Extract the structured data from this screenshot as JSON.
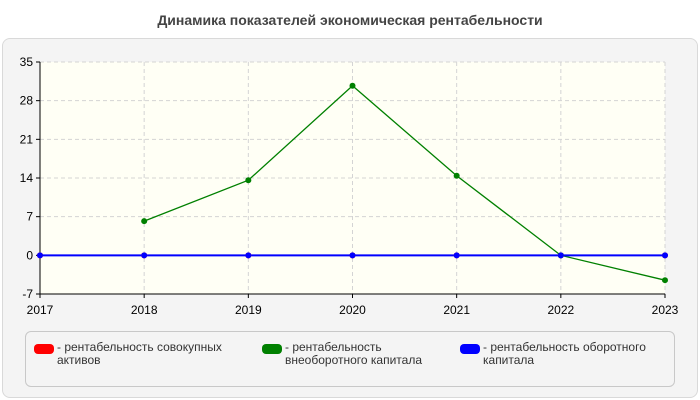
{
  "chart_data": {
    "type": "line",
    "title": "Динамика показателей экономическая рентабельности",
    "x": [
      "2017",
      "2018",
      "2019",
      "2020",
      "2021",
      "2022",
      "2023"
    ],
    "yticks": [
      "-7",
      "0",
      "7",
      "14",
      "21",
      "28",
      "35"
    ],
    "ylim": [
      -7,
      35
    ],
    "grid": true,
    "legend_position": "bottom",
    "series": [
      {
        "name": "- рентабельность совокупных активов",
        "color": "#ff0000",
        "values": [
          0,
          0,
          0,
          0,
          0,
          0,
          0
        ]
      },
      {
        "name": "- рентабельность внеоборотного капитала",
        "color": "#008000",
        "values": [
          null,
          6.2,
          13.6,
          30.7,
          14.4,
          0,
          -4.5
        ]
      },
      {
        "name": "- рентабельность оборотного капитала",
        "color": "#0000ff",
        "values": [
          0,
          0,
          0,
          0,
          0,
          0,
          0
        ]
      }
    ]
  }
}
